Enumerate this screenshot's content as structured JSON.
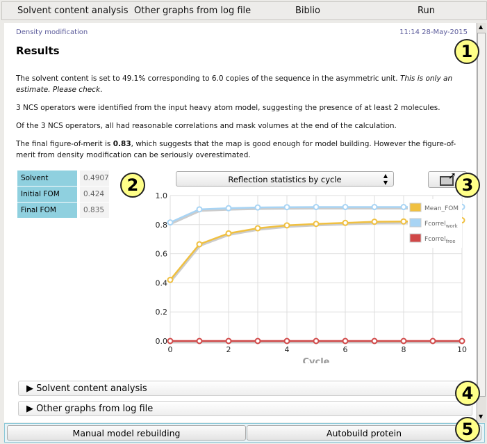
{
  "menu": [
    "Solvent content analysis",
    "Other graphs from log file",
    "Biblio",
    "Run"
  ],
  "header": {
    "section": "Density modification",
    "timestamp": "11:14 28-May-2015",
    "title": "Results"
  },
  "paragraphs": {
    "p1a": "The solvent content is set to 49.1% corresponding to 6.0 copies of the sequence in the asymmetric unit. ",
    "p1b": "This is only an estimate. Please check",
    "p1c": ".",
    "p2": "3 NCS operators were identified from the input heavy atom model, suggesting the presence of at least 2 molecules.",
    "p3": "Of the 3 NCS operators, all had reasonable correlations and mask volumes at the end of the calculation.",
    "p4a": "The final figure-of-merit is ",
    "p4b": "0.83",
    "p4c": ", which suggests that the map is good enough for model building. However the figure-of-merit from density modification can be seriously overestimated."
  },
  "stats": [
    {
      "label": "Solvent content",
      "value": "0.4907"
    },
    {
      "label": "Initial FOM",
      "value": "0.424"
    },
    {
      "label": "Final FOM",
      "value": "0.835"
    }
  ],
  "graph_selector": {
    "selected": "Reflection statistics by cycle"
  },
  "badges": [
    "1",
    "2",
    "3",
    "4",
    "5"
  ],
  "sections": [
    "▶ Solvent content analysis",
    "▶ Other graphs from log file"
  ],
  "buttons": {
    "manual": "Manual model rebuilding",
    "autobuild": "Autobuild protein"
  },
  "chart_data": {
    "type": "line",
    "xlabel": "Cycle",
    "ylabel": "",
    "xlim": [
      0,
      10
    ],
    "ylim": [
      0,
      1.0
    ],
    "xticks": [
      "0",
      "2",
      "4",
      "6",
      "8",
      "10"
    ],
    "yticks": [
      "0.0",
      "0.2",
      "0.4",
      "0.6",
      "0.8",
      "1.0"
    ],
    "grid": true,
    "legend": "top-right",
    "x": [
      0,
      1,
      2,
      3,
      4,
      5,
      6,
      7,
      8,
      9,
      10
    ],
    "series": [
      {
        "name": "Mean_FOM",
        "sub": "",
        "color": "#f0c040",
        "values": [
          0.42,
          0.665,
          0.74,
          0.775,
          0.795,
          0.805,
          0.812,
          0.82,
          0.822,
          0.826,
          0.83
        ]
      },
      {
        "name": "Fcorrel",
        "sub": "work",
        "color": "#a8d4f4",
        "values": [
          0.815,
          0.905,
          0.913,
          0.918,
          0.92,
          0.921,
          0.921,
          0.921,
          0.921,
          0.921,
          0.922
        ]
      },
      {
        "name": "Fcorrel",
        "sub": "free",
        "color": "#d04848",
        "values": [
          0,
          0,
          0,
          0,
          0,
          0,
          0,
          0,
          0,
          0,
          0
        ]
      }
    ]
  }
}
